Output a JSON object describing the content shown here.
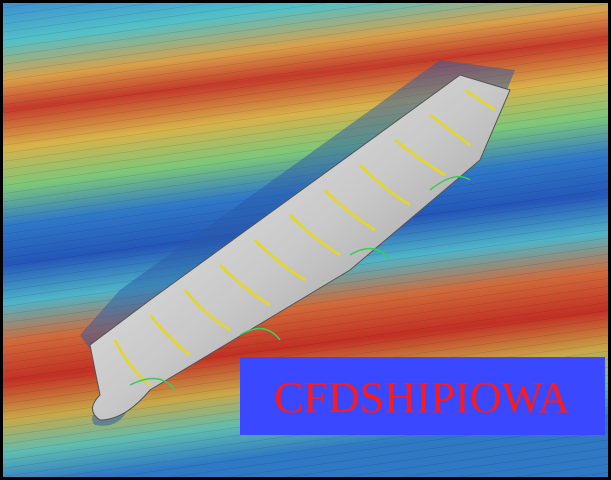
{
  "label": "CFDSHIPIOWA"
}
